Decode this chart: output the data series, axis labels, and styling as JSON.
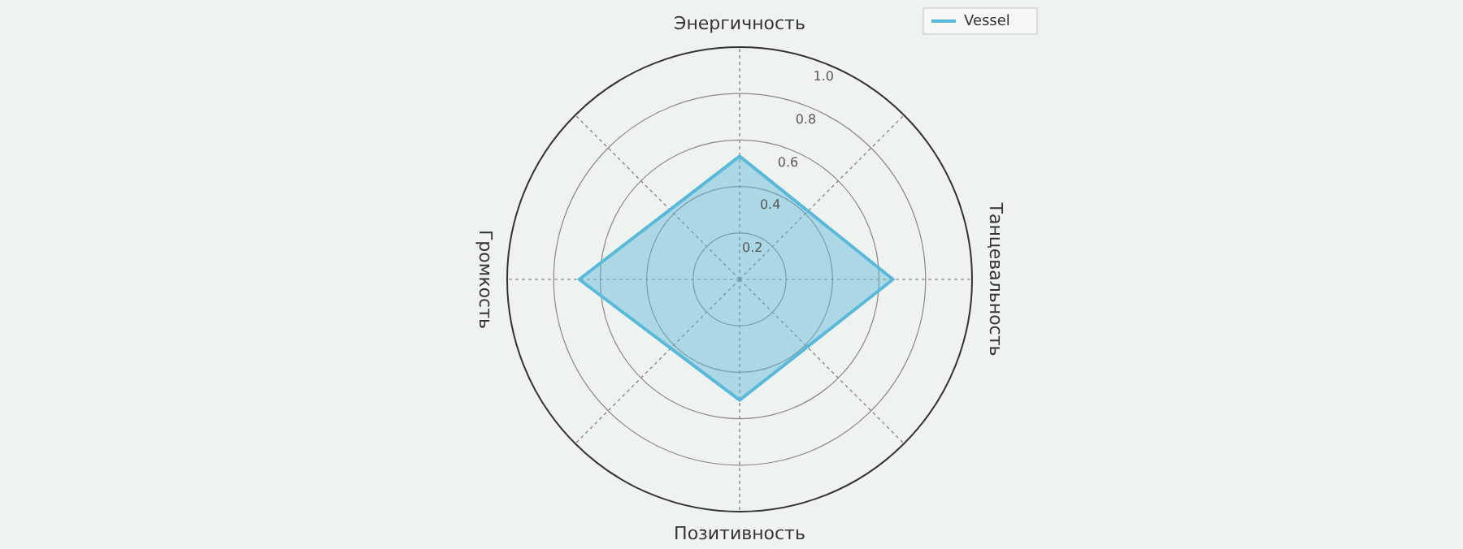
{
  "chart_data": {
    "type": "radar",
    "categories": [
      "Энергичность",
      "Танцевальность",
      "Позитивность",
      "Громкость"
    ],
    "series": [
      {
        "name": "Vessel",
        "color": "#5ab8d9",
        "values": [
          0.53,
          0.66,
          0.52,
          0.69
        ]
      }
    ],
    "ylim": [
      0,
      1
    ],
    "yticks": [
      0.2,
      0.4,
      0.6,
      0.8,
      {
        "value": 1,
        "label": "1.0"
      }
    ],
    "grid": true,
    "legend": "top right"
  }
}
